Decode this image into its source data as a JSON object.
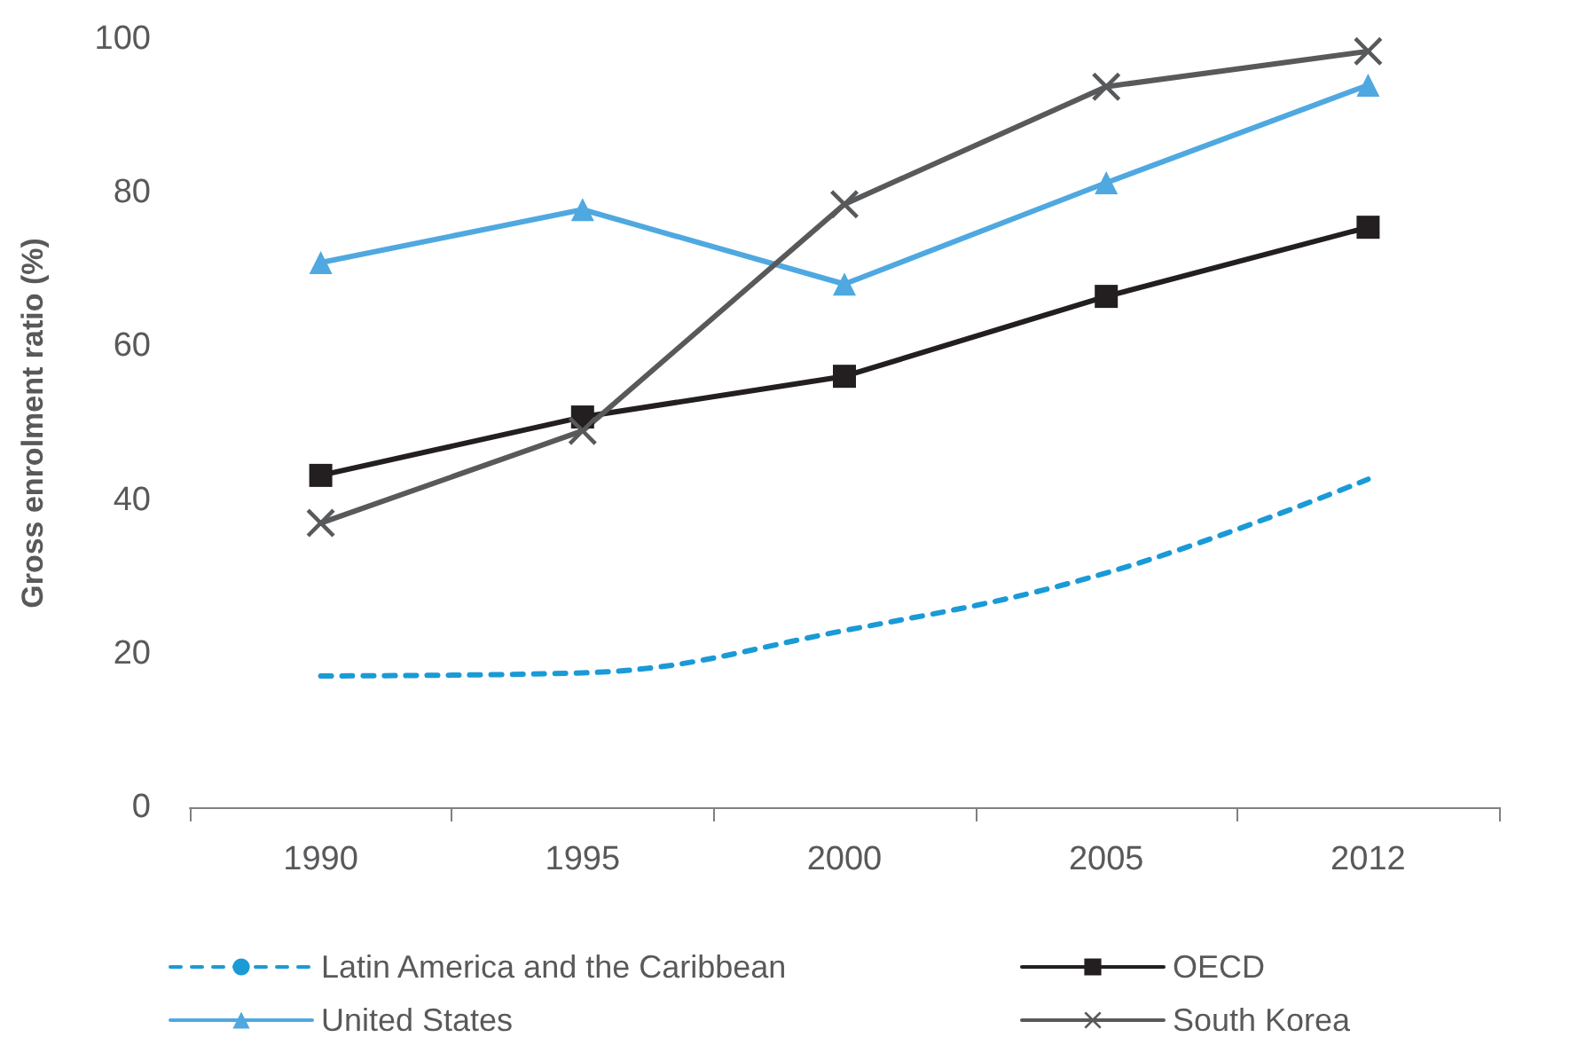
{
  "chart_data": {
    "type": "line",
    "ylabel": "Gross enrolment ratio (%)",
    "categories": [
      "1990",
      "1995",
      "2000",
      "2005",
      "2012"
    ],
    "series": [
      {
        "name": "Latin America and the Caribbean",
        "color": "#1a9ad6",
        "values": [
          17.1,
          17.5,
          23,
          30.5,
          42.7
        ],
        "marker": "none",
        "line_style": "dashed"
      },
      {
        "name": "OECD",
        "color": "#231f20",
        "values": [
          43.2,
          50.8,
          56.1,
          66.5,
          75.5
        ],
        "marker": "square",
        "line_style": "solid"
      },
      {
        "name": "United States",
        "color": "#4fa8e0",
        "values": [
          70.9,
          77.8,
          68.1,
          81.3,
          94
        ],
        "marker": "triangle",
        "line_style": "solid"
      },
      {
        "name": "South Korea",
        "color": "#58595b",
        "values": [
          37,
          49,
          78.5,
          93.8,
          98.4
        ],
        "marker": "cross",
        "line_style": "solid"
      }
    ],
    "ylim": [
      0,
      100
    ],
    "yticks": [
      0,
      20,
      40,
      60,
      80,
      100
    ],
    "grid": false,
    "legend": "bottom"
  }
}
